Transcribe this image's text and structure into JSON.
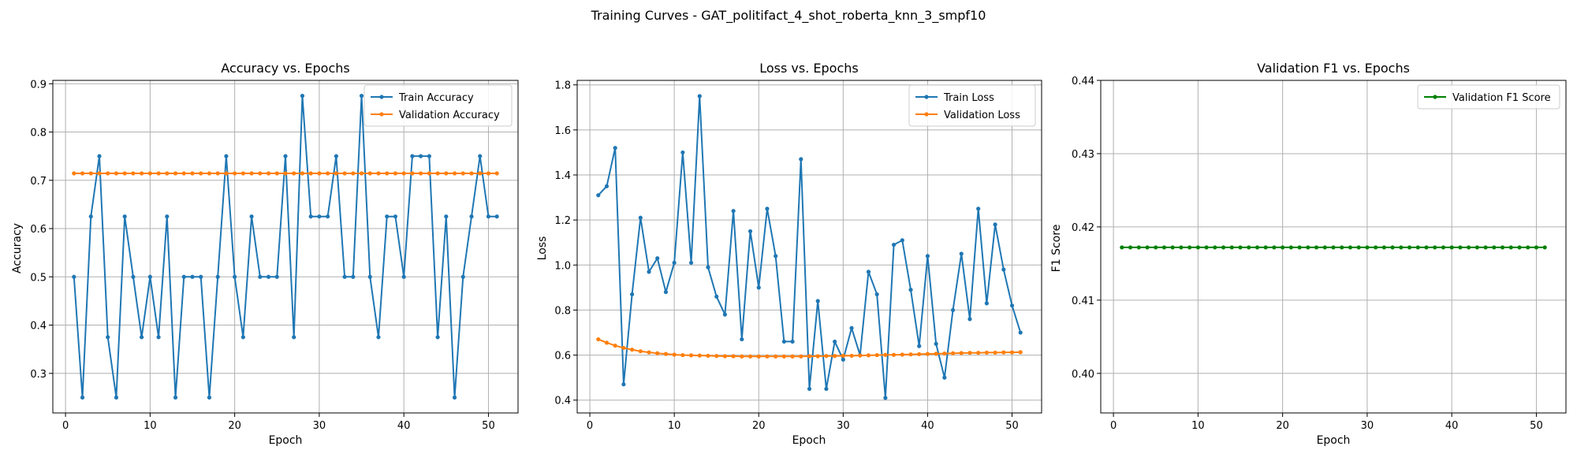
{
  "suptitle": "Training Curves - GAT_politifact_4_shot_roberta_knn_3_smpf10",
  "colors": {
    "blue": "#1f77b4",
    "orange": "#ff7f0e",
    "green": "#008000",
    "grid": "#b0b0b0"
  },
  "chart_data": [
    {
      "type": "line",
      "title": "Accuracy vs. Epochs",
      "xlabel": "Epoch",
      "ylabel": "Accuracy",
      "xlim": [
        -1.5,
        53.5
      ],
      "ylim": [
        0.218,
        0.907
      ],
      "xticks": [
        0,
        10,
        20,
        30,
        40,
        50
      ],
      "yticks": [
        0.3,
        0.4,
        0.5,
        0.6,
        0.7,
        0.8,
        0.9
      ],
      "ytick_labels": [
        "0.3",
        "0.4",
        "0.5",
        "0.6",
        "0.7",
        "0.8",
        "0.9"
      ],
      "grid": true,
      "legend_position": "top-right",
      "series": [
        {
          "name": "Train Accuracy",
          "color": "#1f77b4",
          "x_start": 1,
          "values": [
            0.5,
            0.25,
            0.625,
            0.75,
            0.375,
            0.25,
            0.625,
            0.5,
            0.375,
            0.5,
            0.375,
            0.625,
            0.25,
            0.5,
            0.5,
            0.5,
            0.25,
            0.5,
            0.75,
            0.5,
            0.375,
            0.625,
            0.5,
            0.5,
            0.5,
            0.75,
            0.375,
            0.875,
            0.625,
            0.625,
            0.625,
            0.75,
            0.5,
            0.5,
            0.875,
            0.5,
            0.375,
            0.625,
            0.625,
            0.5,
            0.75,
            0.75,
            0.75,
            0.375,
            0.625,
            0.25,
            0.5,
            0.625,
            0.75,
            0.625,
            0.625
          ]
        },
        {
          "name": "Validation Accuracy",
          "color": "#ff7f0e",
          "x_start": 1,
          "values": [
            0.7143,
            0.7143,
            0.7143,
            0.7143,
            0.7143,
            0.7143,
            0.7143,
            0.7143,
            0.7143,
            0.7143,
            0.7143,
            0.7143,
            0.7143,
            0.7143,
            0.7143,
            0.7143,
            0.7143,
            0.7143,
            0.7143,
            0.7143,
            0.7143,
            0.7143,
            0.7143,
            0.7143,
            0.7143,
            0.7143,
            0.7143,
            0.7143,
            0.7143,
            0.7143,
            0.7143,
            0.7143,
            0.7143,
            0.7143,
            0.7143,
            0.7143,
            0.7143,
            0.7143,
            0.7143,
            0.7143,
            0.7143,
            0.7143,
            0.7143,
            0.7143,
            0.7143,
            0.7143,
            0.7143,
            0.7143,
            0.7143,
            0.7143,
            0.7143
          ]
        }
      ]
    },
    {
      "type": "line",
      "title": "Loss vs. Epochs",
      "xlabel": "Epoch",
      "ylabel": "Loss",
      "xlim": [
        -1.5,
        53.5
      ],
      "ylim": [
        0.343,
        1.82
      ],
      "xticks": [
        0,
        10,
        20,
        30,
        40,
        50
      ],
      "yticks": [
        0.4,
        0.6,
        0.8,
        1.0,
        1.2,
        1.4,
        1.6,
        1.8
      ],
      "ytick_labels": [
        "0.4",
        "0.6",
        "0.8",
        "1.0",
        "1.2",
        "1.4",
        "1.6",
        "1.8"
      ],
      "grid": true,
      "legend_position": "top-right",
      "series": [
        {
          "name": "Train Loss",
          "color": "#1f77b4",
          "x_start": 1,
          "values": [
            1.31,
            1.35,
            1.52,
            0.47,
            0.87,
            1.21,
            0.97,
            1.03,
            0.88,
            1.01,
            1.5,
            1.01,
            1.75,
            0.99,
            0.86,
            0.78,
            1.24,
            0.67,
            1.15,
            0.9,
            1.25,
            1.04,
            0.66,
            0.66,
            1.47,
            0.45,
            0.84,
            0.45,
            0.66,
            0.58,
            0.72,
            0.6,
            0.97,
            0.87,
            0.41,
            1.09,
            1.11,
            0.89,
            0.64,
            1.04,
            0.65,
            0.5,
            0.8,
            1.05,
            0.76,
            1.25,
            0.83,
            1.18,
            0.98,
            0.82,
            0.7
          ]
        },
        {
          "name": "Validation Loss",
          "color": "#ff7f0e",
          "x_start": 1,
          "values": [
            0.67,
            0.655,
            0.642,
            0.632,
            0.624,
            0.617,
            0.612,
            0.608,
            0.605,
            0.602,
            0.6,
            0.599,
            0.598,
            0.597,
            0.596,
            0.595,
            0.595,
            0.594,
            0.594,
            0.594,
            0.594,
            0.594,
            0.594,
            0.594,
            0.594,
            0.595,
            0.595,
            0.596,
            0.596,
            0.597,
            0.597,
            0.598,
            0.599,
            0.6,
            0.601,
            0.601,
            0.602,
            0.603,
            0.604,
            0.605,
            0.606,
            0.607,
            0.608,
            0.609,
            0.61,
            0.61,
            0.611,
            0.611,
            0.612,
            0.612,
            0.613
          ]
        }
      ]
    },
    {
      "type": "line",
      "title": "Validation F1 vs. Epochs",
      "xlabel": "Epoch",
      "ylabel": "F1 Score",
      "xlim": [
        -1.5,
        53.5
      ],
      "ylim": [
        0.3946,
        0.44
      ],
      "xticks": [
        0,
        10,
        20,
        30,
        40,
        50
      ],
      "yticks": [
        0.4,
        0.41,
        0.42,
        0.43,
        0.44
      ],
      "ytick_labels": [
        "0.40",
        "0.41",
        "0.42",
        "0.43",
        "0.44"
      ],
      "grid": true,
      "legend_position": "top-right",
      "series": [
        {
          "name": "Validation F1 Score",
          "color": "#008000",
          "x_start": 1,
          "values": [
            0.4172,
            0.4172,
            0.4172,
            0.4172,
            0.4172,
            0.4172,
            0.4172,
            0.4172,
            0.4172,
            0.4172,
            0.4172,
            0.4172,
            0.4172,
            0.4172,
            0.4172,
            0.4172,
            0.4172,
            0.4172,
            0.4172,
            0.4172,
            0.4172,
            0.4172,
            0.4172,
            0.4172,
            0.4172,
            0.4172,
            0.4172,
            0.4172,
            0.4172,
            0.4172,
            0.4172,
            0.4172,
            0.4172,
            0.4172,
            0.4172,
            0.4172,
            0.4172,
            0.4172,
            0.4172,
            0.4172,
            0.4172,
            0.4172,
            0.4172,
            0.4172,
            0.4172,
            0.4172,
            0.4172,
            0.4172,
            0.4172,
            0.4172,
            0.4172
          ]
        }
      ]
    }
  ]
}
